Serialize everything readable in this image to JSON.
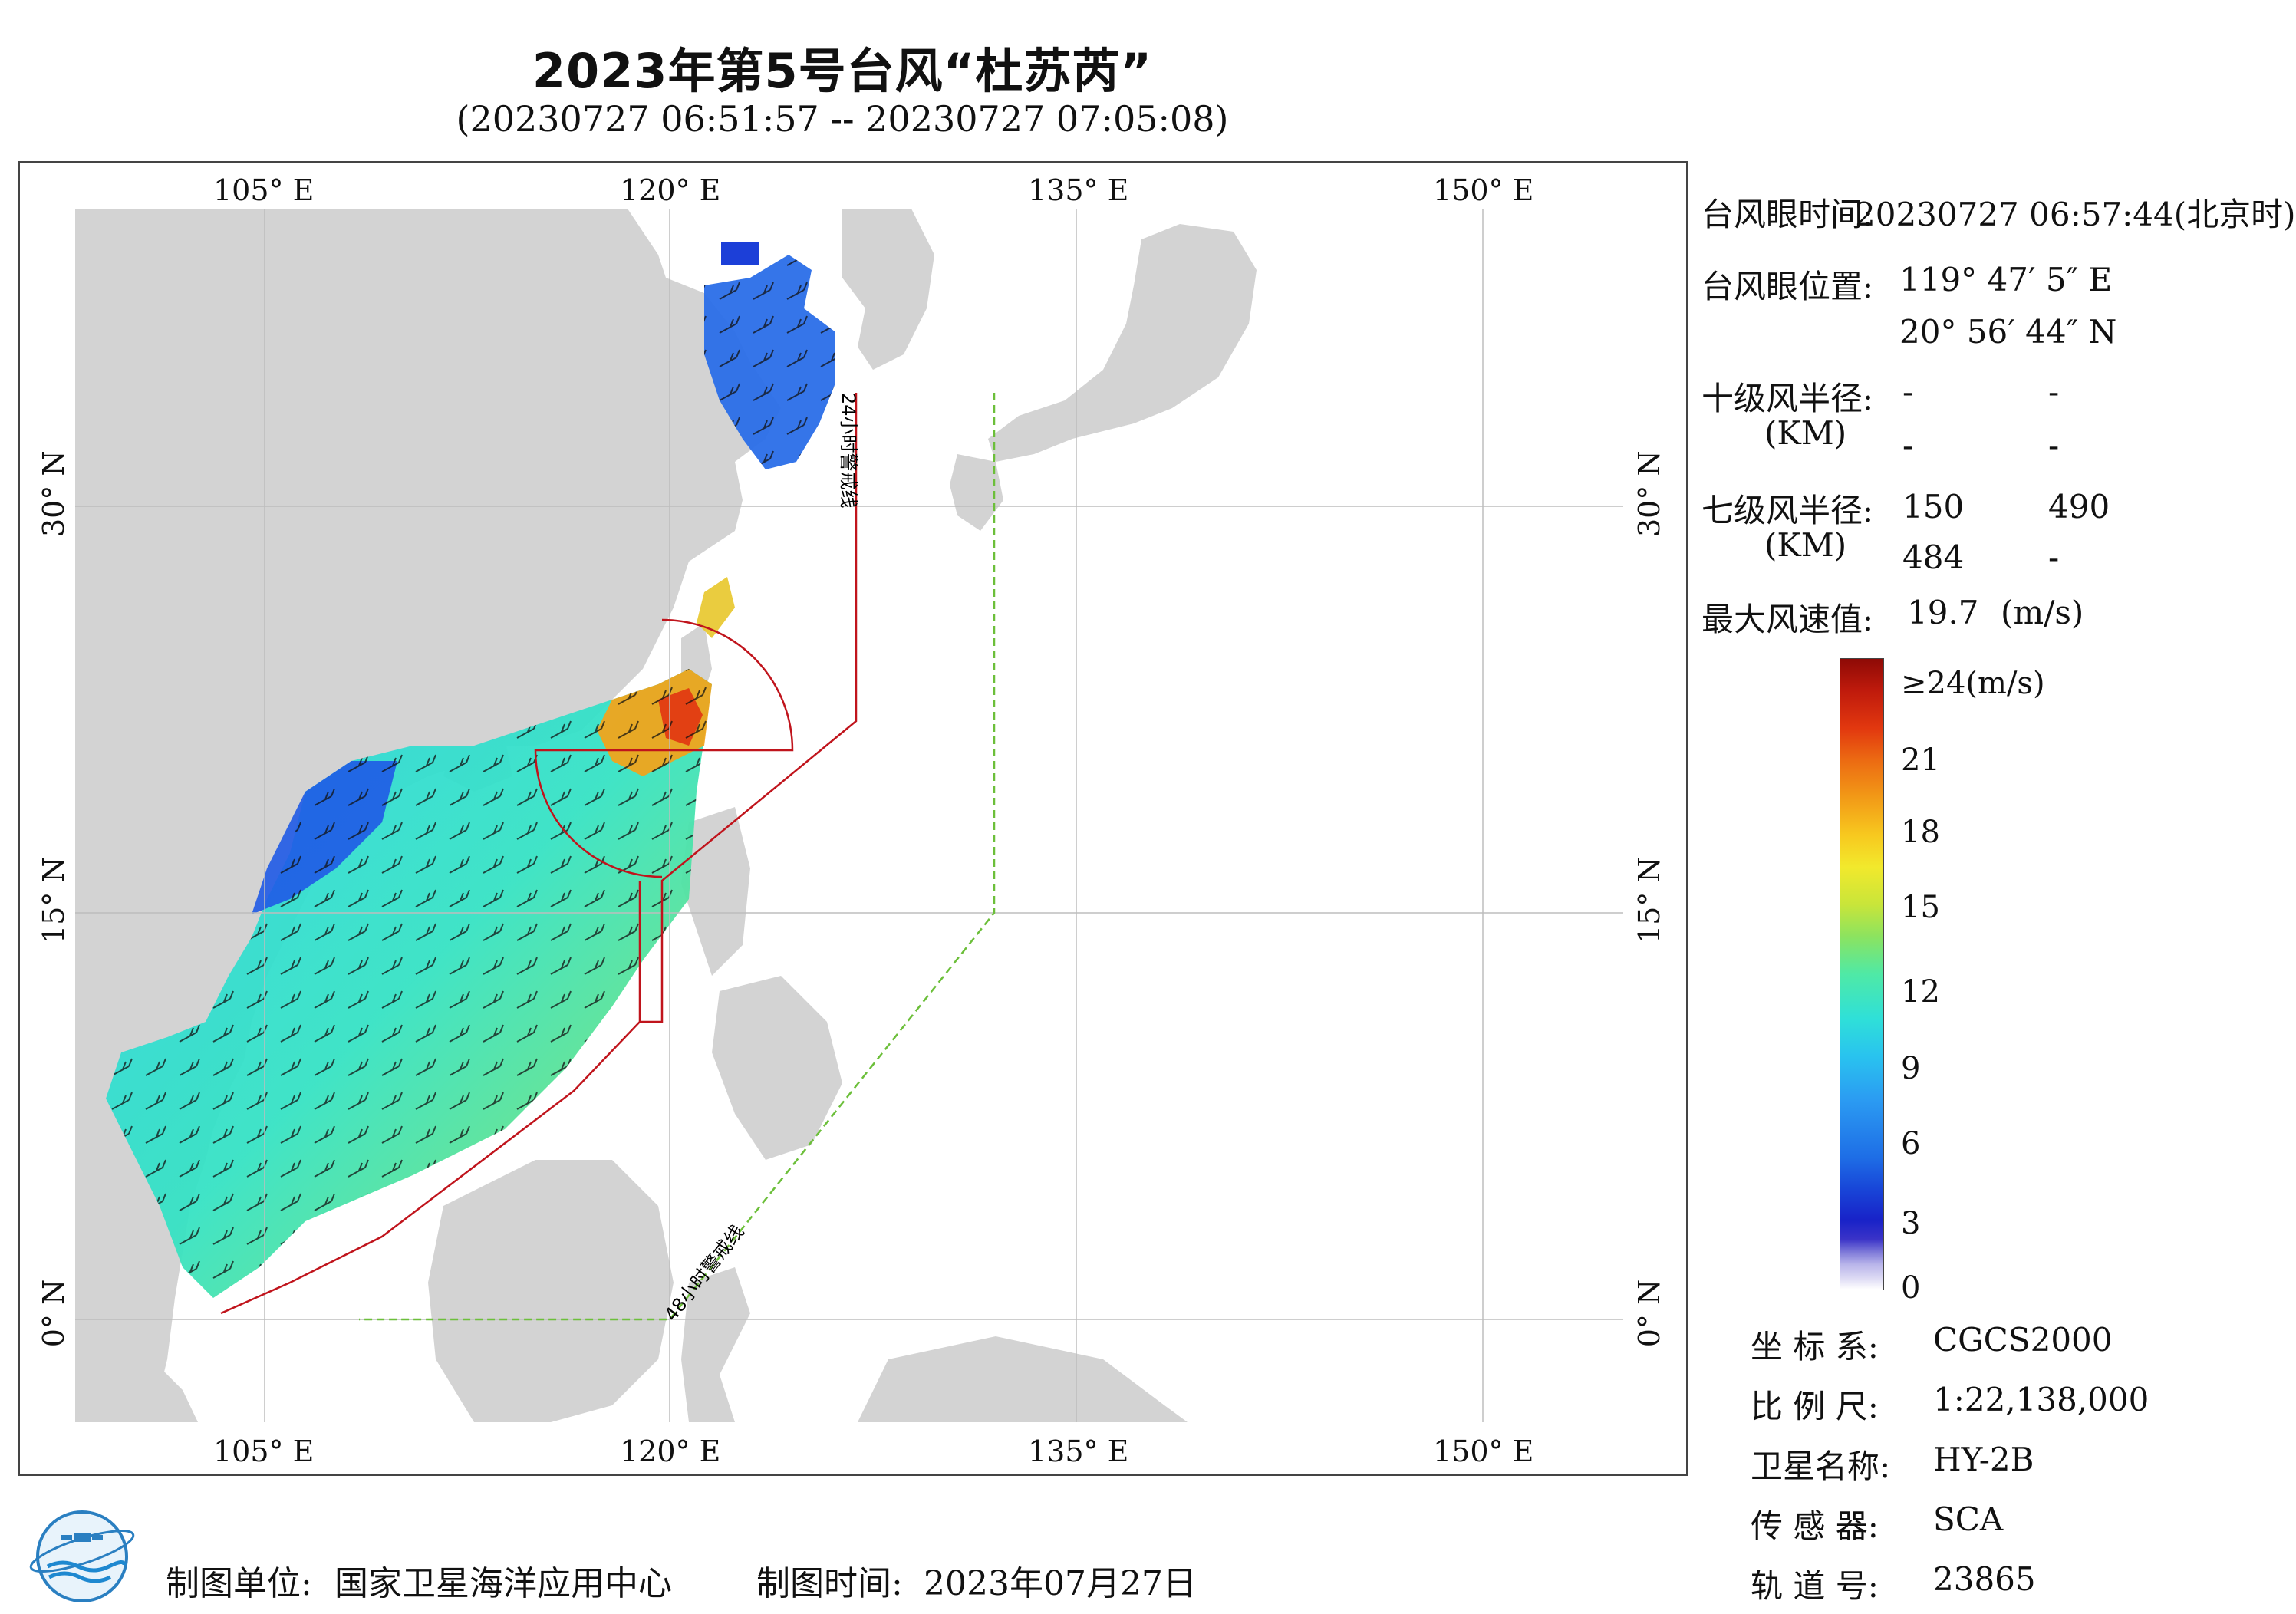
{
  "title": "2023年第5号台风“杜苏芮”",
  "subtitle": "(20230727 06:51:57 -- 20230727 07:05:08)",
  "map": {
    "top_labels": [
      "105° E",
      "120° E",
      "135° E",
      "150° E"
    ],
    "bottom_labels": [
      "105° E",
      "120° E",
      "135° E",
      "150° E"
    ],
    "left_labels": [
      "30° N",
      "15° N",
      "0° N"
    ],
    "right_labels": [
      "30° N",
      "15° N",
      "0° N"
    ],
    "warning_24h": "24小时警戒线",
    "warning_48h": "48小时警戒线",
    "colors": {
      "land": "#d3d3d3",
      "sea": "#ffffff",
      "warning_24h": "#c0141c",
      "warning_48h": "#6cbf3a"
    }
  },
  "info": {
    "eye_time_label": "台风眼时间:",
    "eye_time_value": "20230727 06:57:44(北京时)",
    "eye_pos_label": "台风眼位置:",
    "eye_lon": "119° 47′ 5″ E",
    "eye_lat": "20° 56′ 44″ N",
    "r10_label": "十级风半径:",
    "r10_unit": "(KM)",
    "r10_values": [
      "-",
      "-",
      "-",
      "-"
    ],
    "r7_label": "七级风半径:",
    "r7_unit": "(KM)",
    "r7_values": [
      "150",
      "490",
      "484",
      "-"
    ],
    "max_wind_label": "最大风速值:",
    "max_wind_value": "19.7",
    "max_wind_unit": "(m/s)"
  },
  "colorbar": {
    "labels": [
      "≥24(m/s)",
      "21",
      "18",
      "15",
      "12",
      "9",
      "6",
      "3",
      "0"
    ]
  },
  "meta": {
    "coord_label": "坐 标 系:",
    "coord_value": "CGCS2000",
    "scale_label": "比 例 尺:",
    "scale_value": "1:22,138,000",
    "sat_label": "卫星名称:",
    "sat_value": "HY-2B",
    "sensor_label": "传 感 器:",
    "sensor_value": "SCA",
    "orbit_label": "轨 道 号:",
    "orbit_value": "23865"
  },
  "footer": {
    "org_label": "制图单位:",
    "org_value": "国家卫星海洋应用中心",
    "date_label": "制图时间:",
    "date_value": "2023年07月27日"
  }
}
